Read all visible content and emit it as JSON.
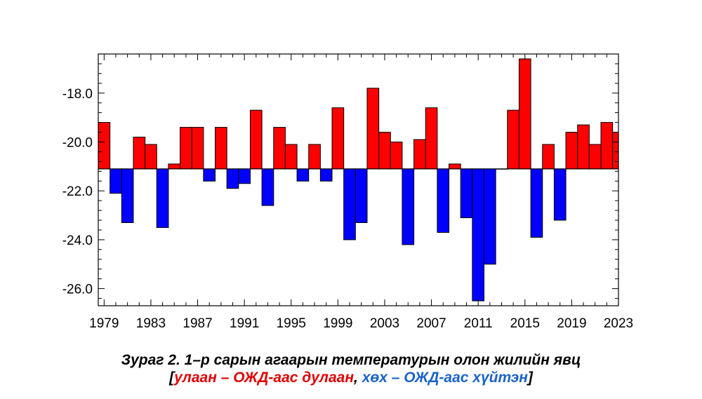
{
  "chart_data": {
    "type": "bar",
    "baseline": -21.1,
    "x": [
      1979,
      1980,
      1981,
      1982,
      1983,
      1984,
      1985,
      1986,
      1987,
      1988,
      1989,
      1990,
      1991,
      1992,
      1993,
      1994,
      1995,
      1996,
      1997,
      1998,
      1999,
      2000,
      2001,
      2002,
      2003,
      2004,
      2005,
      2006,
      2007,
      2008,
      2009,
      2010,
      2011,
      2012,
      2013,
      2014,
      2015,
      2016,
      2017,
      2018,
      2019,
      2020,
      2021,
      2022,
      2023
    ],
    "values": [
      -19.2,
      -22.1,
      -23.3,
      -19.8,
      -20.1,
      -23.5,
      -20.9,
      -19.4,
      -19.4,
      -21.6,
      -19.4,
      -21.9,
      -21.7,
      -18.7,
      -22.6,
      -19.4,
      -20.1,
      -21.6,
      -20.1,
      -21.6,
      -18.6,
      -24.0,
      -23.3,
      -17.8,
      -19.6,
      -20.0,
      -24.2,
      -19.9,
      -18.6,
      -23.7,
      -20.9,
      -23.1,
      -26.5,
      -25.0,
      -21.1,
      -18.7,
      -16.6,
      -23.9,
      -20.1,
      -23.2,
      -19.6,
      -19.3,
      -20.1,
      -19.2,
      -19.6
    ],
    "xticks": [
      "1979",
      "1983",
      "1987",
      "1991",
      "1995",
      "1999",
      "2003",
      "2007",
      "2011",
      "2015",
      "2019",
      "2023"
    ],
    "yticks": [
      "-18.0",
      "-20.0",
      "-22.0",
      "-24.0",
      "-26.0"
    ],
    "ylim": [
      -26.7,
      -16.4
    ],
    "colors": {
      "warm": "#ff0000",
      "cold": "#0000ff"
    }
  },
  "caption": {
    "line1": "Зураг 2. 1–р сарын агаарын температурын олон жилийн явц",
    "open_bracket": "[",
    "warm_note": "улаан – ОЖД-аас дулаан",
    "separator": ", ",
    "cold_note": "хөх – ОЖД-аас хүйтэн",
    "close_bracket": "]"
  }
}
